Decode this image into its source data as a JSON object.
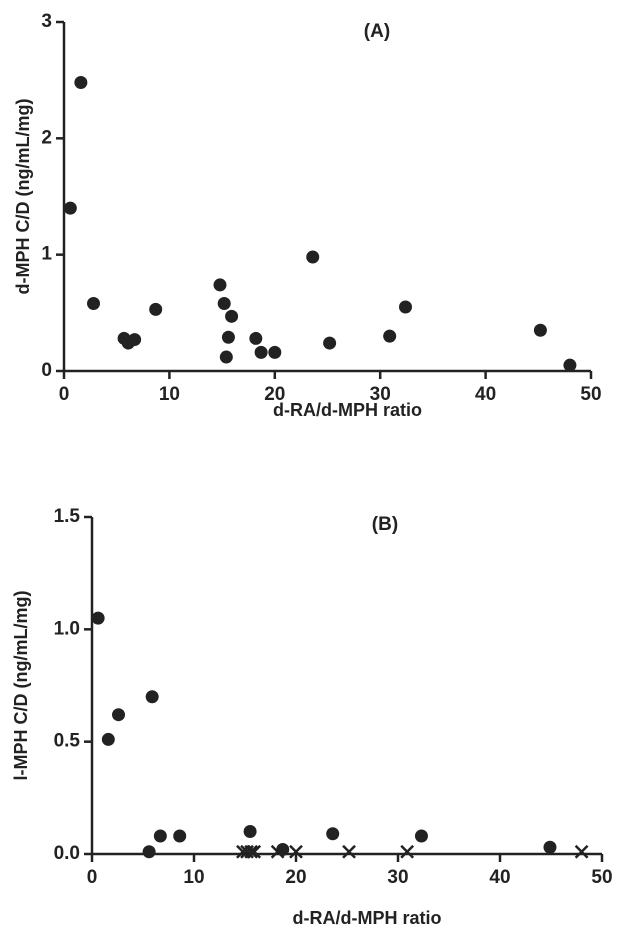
{
  "chart_data": [
    {
      "type": "scatter",
      "title": "(A)",
      "x_label": "d-RA/d-MPH ratio",
      "y_label": "d-MPH C/D (ng/mL/mg)",
      "xlim": [
        0,
        50
      ],
      "xticks": [
        0,
        10,
        20,
        30,
        40,
        50
      ],
      "ylim": [
        0,
        3
      ],
      "yticks": [
        0,
        1,
        2,
        3
      ],
      "series": [
        {
          "color": "#222222",
          "marker": "circle",
          "x": [
            0.6,
            1.6,
            2.8,
            5.7,
            6.1,
            6.7,
            8.7,
            14.8,
            15.2,
            15.6,
            15.9,
            15.4,
            18.2,
            18.7,
            20.0,
            23.6,
            25.2,
            30.9,
            32.4,
            45.2,
            48.0
          ],
          "values": [
            1.4,
            2.48,
            0.58,
            0.28,
            0.24,
            0.27,
            0.53,
            0.74,
            0.58,
            0.29,
            0.47,
            0.12,
            0.28,
            0.16,
            0.16,
            0.98,
            0.24,
            0.3,
            0.55,
            0.35,
            0.05
          ]
        }
      ]
    },
    {
      "type": "scatter",
      "title": "(B)",
      "x_label": "d-RA/d-MPH ratio",
      "y_label": "l-MPH C/D (ng/mL/mg)",
      "xlim": [
        0,
        50
      ],
      "xticks": [
        0,
        10,
        20,
        30,
        40,
        50
      ],
      "ylim": [
        0,
        1.5
      ],
      "yticks": [
        {
          "value": 0,
          "label": "0.0"
        },
        0.5,
        {
          "value": 1,
          "label": "1.0"
        },
        1.5
      ],
      "series": [
        {
          "color": "#222222",
          "marker": "circle",
          "x": [
            0.6,
            1.6,
            2.6,
            5.9,
            5.6,
            6.7,
            8.6,
            15.5,
            18.7,
            23.6,
            32.3,
            44.9
          ],
          "values": [
            1.05,
            0.51,
            0.62,
            0.7,
            0.01,
            0.08,
            0.08,
            0.1,
            0.02,
            0.09,
            0.08,
            0.03
          ]
        },
        {
          "color": "#222222",
          "marker": "x",
          "x": [
            14.8,
            15.2,
            15.6,
            15.9,
            18.2,
            20.0,
            25.2,
            30.9,
            48.0
          ],
          "values": [
            0.01,
            0.01,
            0.01,
            0.01,
            0.01,
            0.01,
            0.01,
            0.01,
            0.01
          ]
        }
      ]
    }
  ]
}
